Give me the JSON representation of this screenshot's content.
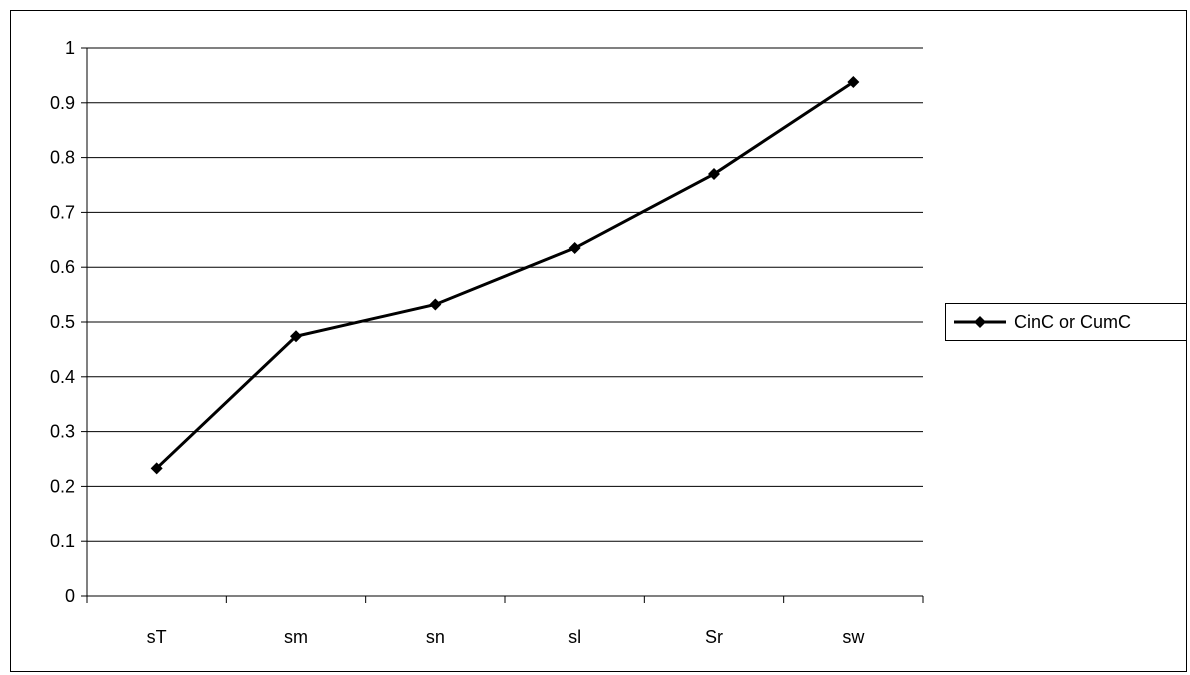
{
  "chart_data": {
    "type": "line",
    "categories": [
      "sT",
      "sm",
      "sn",
      "sl",
      "Sr",
      "sw"
    ],
    "series": [
      {
        "name": "CinC or CumC",
        "values": [
          0.233,
          0.474,
          0.532,
          0.635,
          0.77,
          0.938
        ],
        "color": "#000000",
        "marker": "diamond"
      }
    ],
    "ylim": [
      0,
      1
    ],
    "yticks": [
      "0",
      "0.1",
      "0.2",
      "0.3",
      "0.4",
      "0.5",
      "0.6",
      "0.7",
      "0.8",
      "0.9",
      "1"
    ],
    "grid": true,
    "legend": "right",
    "title": "",
    "xlabel": "",
    "ylabel": ""
  }
}
